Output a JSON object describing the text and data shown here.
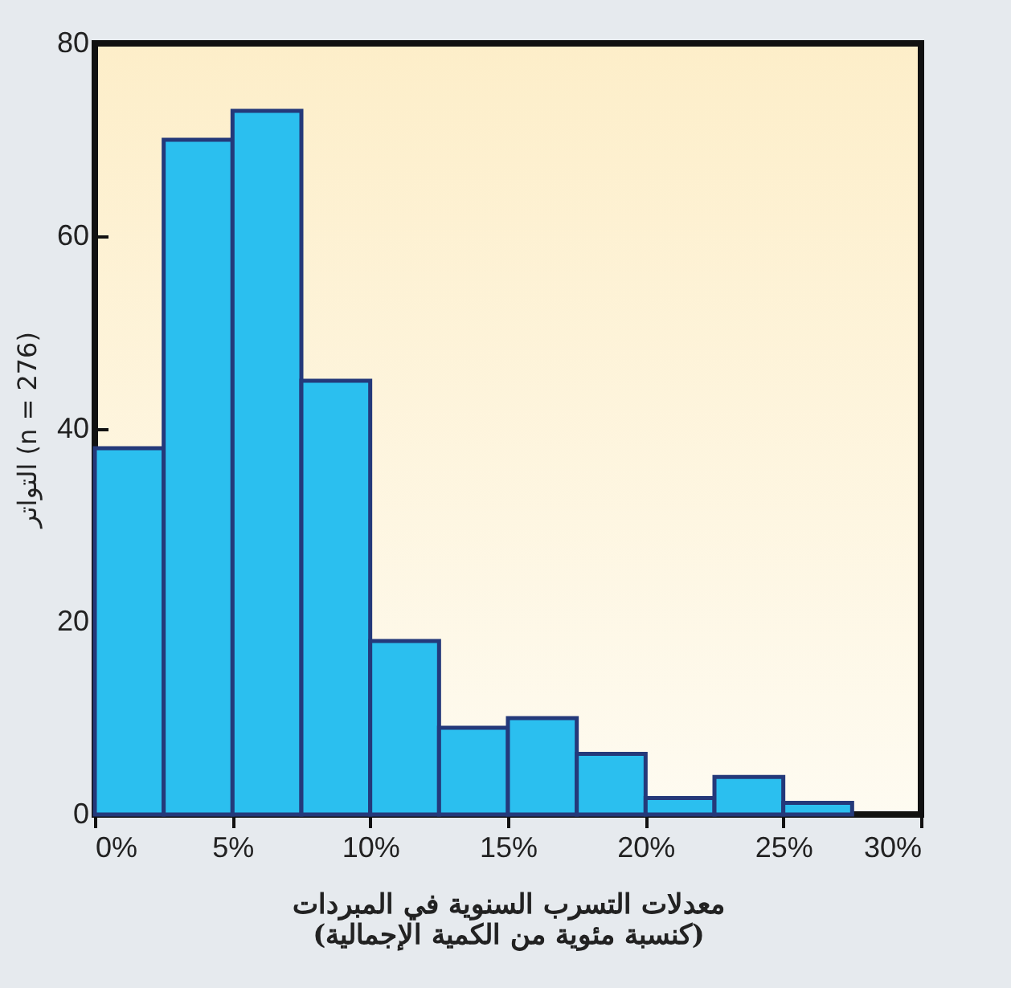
{
  "chart_data": {
    "type": "histogram",
    "xlabel": "معدلات التسرب السنوية في المبردات\n(كنسبة مئوية من الكمية الإجمالية)",
    "ylabel": "التواتر (n = 276)",
    "bins": [
      0,
      2.5,
      5,
      7.5,
      10,
      12.5,
      15,
      17.5,
      20,
      22.5,
      25,
      27.5
    ],
    "values": [
      38,
      70,
      73,
      45,
      18,
      9,
      10,
      6.3,
      1.7,
      3.9,
      1.2
    ],
    "color": "#2bbfef",
    "xlim": [
      0,
      30
    ],
    "xticks": [
      {
        "value": 0,
        "label": "0%"
      },
      {
        "value": 5,
        "label": "5%"
      },
      {
        "value": 10,
        "label": "10%"
      },
      {
        "value": 15,
        "label": "15%"
      },
      {
        "value": 20,
        "label": "20%"
      },
      {
        "value": 25,
        "label": "25%"
      },
      {
        "value": 30,
        "label": "30%"
      }
    ],
    "ylim": [
      0,
      80
    ],
    "yticks": [
      0,
      20,
      40,
      60,
      80
    ],
    "grid": false
  }
}
